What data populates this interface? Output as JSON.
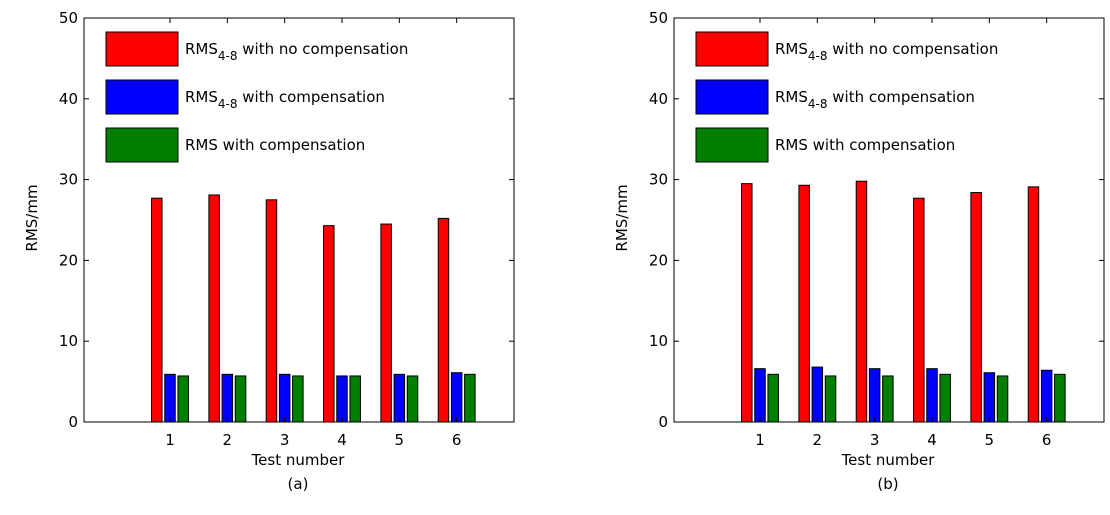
{
  "chart_data": [
    {
      "type": "bar",
      "caption": "(a)",
      "xlabel": "Test number",
      "ylabel": "RMS/mm",
      "ylim": [
        0,
        50
      ],
      "yticks": [
        0,
        10,
        20,
        30,
        40,
        50
      ],
      "categories": [
        "1",
        "2",
        "3",
        "4",
        "5",
        "6"
      ],
      "legend": "top-left",
      "series": [
        {
          "name": "RMS4-8 with no compensation",
          "name_base": "RMS",
          "name_sub": "4-8",
          "name_rest": " with no compensation",
          "color": "#ff0000",
          "values": [
            27.7,
            28.1,
            27.5,
            24.3,
            24.5,
            25.2
          ]
        },
        {
          "name": "RMS4-8 with compensation",
          "name_base": "RMS",
          "name_sub": "4-8",
          "name_rest": " with compensation",
          "color": "#0000ff",
          "values": [
            5.9,
            5.9,
            5.9,
            5.7,
            5.9,
            6.1
          ]
        },
        {
          "name": "RMS with compensation",
          "name_base": "RMS with compensation",
          "name_sub": "",
          "name_rest": "",
          "color": "#007f00",
          "values": [
            5.7,
            5.7,
            5.7,
            5.7,
            5.7,
            5.9
          ]
        }
      ]
    },
    {
      "type": "bar",
      "caption": "(b)",
      "xlabel": "Test number",
      "ylabel": "RMS/mm",
      "ylim": [
        0,
        50
      ],
      "yticks": [
        0,
        10,
        20,
        30,
        40,
        50
      ],
      "categories": [
        "1",
        "2",
        "3",
        "4",
        "5",
        "6"
      ],
      "legend": "top-left",
      "series": [
        {
          "name": "RMS4-8 with no compensation",
          "name_base": "RMS",
          "name_sub": "4-8",
          "name_rest": " with no compensation",
          "color": "#ff0000",
          "values": [
            29.5,
            29.3,
            29.8,
            27.7,
            28.4,
            29.1
          ]
        },
        {
          "name": "RMS4-8 with compensation",
          "name_base": "RMS",
          "name_sub": "4-8",
          "name_rest": " with compensation",
          "color": "#0000ff",
          "values": [
            6.6,
            6.8,
            6.6,
            6.6,
            6.1,
            6.4
          ]
        },
        {
          "name": "RMS with compensation",
          "name_base": "RMS with compensation",
          "name_sub": "",
          "name_rest": "",
          "color": "#007f00",
          "values": [
            5.9,
            5.7,
            5.7,
            5.9,
            5.7,
            5.9
          ]
        }
      ]
    }
  ]
}
